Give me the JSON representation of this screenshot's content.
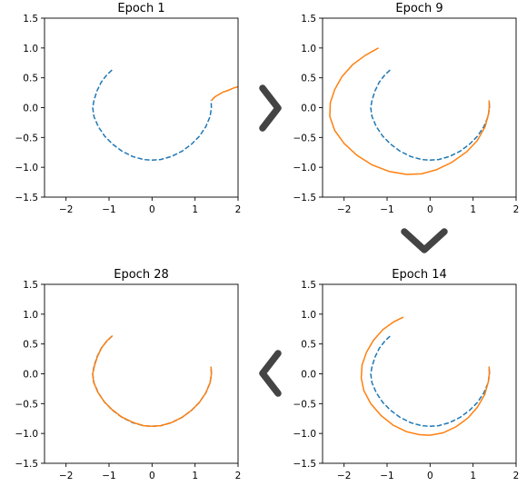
{
  "chart_data": [
    {
      "type": "line",
      "title": "Epoch 1",
      "xlim": [
        -2.5,
        2.0
      ],
      "ylim": [
        -1.5,
        1.5
      ],
      "xticks": [
        -2,
        -1,
        0,
        1,
        2
      ],
      "yticks": [
        -1.5,
        -1.0,
        -0.5,
        0.0,
        0.5,
        1.0,
        1.5
      ],
      "xtick_labels": [
        "−2",
        "−1",
        "0",
        "1",
        "2"
      ],
      "ytick_labels": [
        "−1.5",
        "−1.0",
        "−0.5",
        "0.0",
        "0.5",
        "1.0",
        "1.5"
      ],
      "series": [
        {
          "style": "dashed",
          "color": "#1f77b4",
          "x": [
            -0.93,
            -1.05,
            -1.18,
            -1.28,
            -1.35,
            -1.38,
            -1.35,
            -1.25,
            -1.1,
            -0.92,
            -0.7,
            -0.45,
            -0.2,
            0.0,
            0.2,
            0.45,
            0.7,
            0.92,
            1.1,
            1.25,
            1.35,
            1.38,
            1.37
          ],
          "y": [
            0.63,
            0.55,
            0.43,
            0.28,
            0.12,
            0.0,
            -0.15,
            -0.32,
            -0.48,
            -0.61,
            -0.73,
            -0.82,
            -0.87,
            -0.88,
            -0.87,
            -0.82,
            -0.73,
            -0.61,
            -0.48,
            -0.32,
            -0.15,
            0.0,
            0.12
          ]
        },
        {
          "style": "solid",
          "color": "#ff7f0e",
          "x": [
            1.38,
            1.42,
            1.46,
            1.55,
            1.65,
            1.77,
            1.9,
            2.0
          ],
          "y": [
            0.12,
            0.15,
            0.18,
            0.22,
            0.26,
            0.29,
            0.33,
            0.35
          ]
        }
      ]
    },
    {
      "type": "line",
      "title": "Epoch 9",
      "xlim": [
        -2.5,
        2.0
      ],
      "ylim": [
        -1.5,
        1.5
      ],
      "xticks": [
        -2,
        -1,
        0,
        1,
        2
      ],
      "yticks": [
        -1.5,
        -1.0,
        -0.5,
        0.0,
        0.5,
        1.0,
        1.5
      ],
      "xtick_labels": [
        "−2",
        "−1",
        "0",
        "1",
        "2"
      ],
      "ytick_labels": [
        "−1.5",
        "−1.0",
        "−0.5",
        "0.0",
        "0.5",
        "1.0",
        "1.5"
      ],
      "series": [
        {
          "style": "dashed",
          "color": "#1f77b4",
          "x": [
            -0.93,
            -1.05,
            -1.18,
            -1.28,
            -1.35,
            -1.38,
            -1.35,
            -1.25,
            -1.1,
            -0.92,
            -0.7,
            -0.45,
            -0.2,
            0.0,
            0.2,
            0.45,
            0.7,
            0.92,
            1.1,
            1.25,
            1.35,
            1.38,
            1.37
          ],
          "y": [
            0.63,
            0.55,
            0.43,
            0.28,
            0.12,
            0.0,
            -0.15,
            -0.32,
            -0.48,
            -0.61,
            -0.73,
            -0.82,
            -0.87,
            -0.88,
            -0.87,
            -0.82,
            -0.73,
            -0.61,
            -0.48,
            -0.32,
            -0.15,
            0.0,
            0.12
          ]
        },
        {
          "style": "solid",
          "color": "#ff7f0e",
          "x": [
            -1.2,
            -1.5,
            -1.8,
            -2.05,
            -2.22,
            -2.32,
            -2.33,
            -2.22,
            -2.0,
            -1.7,
            -1.35,
            -0.95,
            -0.55,
            -0.2,
            0.15,
            0.5,
            0.85,
            1.1,
            1.28,
            1.36,
            1.38,
            1.37
          ],
          "y": [
            1.0,
            0.88,
            0.72,
            0.52,
            0.3,
            0.08,
            -0.15,
            -0.38,
            -0.6,
            -0.8,
            -0.96,
            -1.07,
            -1.12,
            -1.11,
            -1.04,
            -0.92,
            -0.74,
            -0.55,
            -0.32,
            -0.1,
            0.05,
            0.12
          ]
        }
      ]
    },
    {
      "type": "line",
      "title": "Epoch 28",
      "xlim": [
        -2.5,
        2.0
      ],
      "ylim": [
        -1.5,
        1.5
      ],
      "xticks": [
        -2,
        -1,
        0,
        1,
        2
      ],
      "yticks": [
        -1.5,
        -1.0,
        -0.5,
        0.0,
        0.5,
        1.0,
        1.5
      ],
      "xtick_labels": [
        "−2",
        "−1",
        "0",
        "1",
        "2"
      ],
      "ytick_labels": [
        "−1.5",
        "−1.0",
        "−0.5",
        "0.0",
        "0.5",
        "1.0",
        "1.5"
      ],
      "series": [
        {
          "style": "dashed",
          "color": "#1f77b4",
          "x": [
            -0.93,
            -1.05,
            -1.18,
            -1.28,
            -1.35,
            -1.38,
            -1.35,
            -1.25,
            -1.1,
            -0.92,
            -0.7,
            -0.45,
            -0.2,
            0.0,
            0.2,
            0.45,
            0.7,
            0.92,
            1.1,
            1.25,
            1.35,
            1.38,
            1.37
          ],
          "y": [
            0.63,
            0.55,
            0.43,
            0.28,
            0.12,
            0.0,
            -0.15,
            -0.32,
            -0.48,
            -0.61,
            -0.73,
            -0.82,
            -0.87,
            -0.88,
            -0.87,
            -0.82,
            -0.73,
            -0.61,
            -0.48,
            -0.32,
            -0.15,
            0.0,
            0.12
          ]
        },
        {
          "style": "solid",
          "color": "#ff7f0e",
          "x": [
            -0.92,
            -1.04,
            -1.17,
            -1.27,
            -1.34,
            -1.38,
            -1.36,
            -1.26,
            -1.11,
            -0.93,
            -0.71,
            -0.46,
            -0.2,
            0.0,
            0.2,
            0.45,
            0.7,
            0.92,
            1.1,
            1.25,
            1.35,
            1.38,
            1.37
          ],
          "y": [
            0.64,
            0.56,
            0.44,
            0.29,
            0.13,
            0.0,
            -0.14,
            -0.31,
            -0.47,
            -0.6,
            -0.72,
            -0.81,
            -0.87,
            -0.88,
            -0.87,
            -0.82,
            -0.73,
            -0.61,
            -0.48,
            -0.32,
            -0.15,
            0.0,
            0.12
          ]
        }
      ]
    },
    {
      "type": "line",
      "title": "Epoch 14",
      "xlim": [
        -2.5,
        2.0
      ],
      "ylim": [
        -1.5,
        1.5
      ],
      "xticks": [
        -2,
        -1,
        0,
        1,
        2
      ],
      "yticks": [
        -1.5,
        -1.0,
        -0.5,
        0.0,
        0.5,
        1.0,
        1.5
      ],
      "xtick_labels": [
        "−2",
        "−1",
        "0",
        "1",
        "2"
      ],
      "ytick_labels": [
        "−1.5",
        "−1.0",
        "−0.5",
        "0.0",
        "0.5",
        "1.0",
        "1.5"
      ],
      "series": [
        {
          "style": "dashed",
          "color": "#1f77b4",
          "x": [
            -0.93,
            -1.05,
            -1.18,
            -1.28,
            -1.35,
            -1.38,
            -1.35,
            -1.25,
            -1.1,
            -0.92,
            -0.7,
            -0.45,
            -0.2,
            0.0,
            0.2,
            0.45,
            0.7,
            0.92,
            1.1,
            1.25,
            1.35,
            1.38,
            1.37
          ],
          "y": [
            0.63,
            0.55,
            0.43,
            0.28,
            0.12,
            0.0,
            -0.15,
            -0.32,
            -0.48,
            -0.61,
            -0.73,
            -0.82,
            -0.87,
            -0.88,
            -0.87,
            -0.82,
            -0.73,
            -0.61,
            -0.48,
            -0.32,
            -0.15,
            0.0,
            0.12
          ]
        },
        {
          "style": "solid",
          "color": "#ff7f0e",
          "x": [
            -0.62,
            -0.85,
            -1.1,
            -1.32,
            -1.48,
            -1.58,
            -1.6,
            -1.54,
            -1.38,
            -1.14,
            -0.86,
            -0.55,
            -0.25,
            0.0,
            0.3,
            0.6,
            0.88,
            1.1,
            1.27,
            1.36,
            1.38,
            1.37
          ],
          "y": [
            0.95,
            0.87,
            0.74,
            0.56,
            0.36,
            0.15,
            -0.07,
            -0.28,
            -0.5,
            -0.7,
            -0.86,
            -0.97,
            -1.02,
            -1.03,
            -0.99,
            -0.89,
            -0.74,
            -0.56,
            -0.35,
            -0.12,
            0.04,
            0.12
          ]
        }
      ]
    }
  ],
  "arrows": [
    {
      "direction": "right",
      "icon": "chevron-right-icon"
    },
    {
      "direction": "down",
      "icon": "chevron-down-icon"
    },
    {
      "direction": "left",
      "icon": "chevron-left-icon"
    }
  ]
}
